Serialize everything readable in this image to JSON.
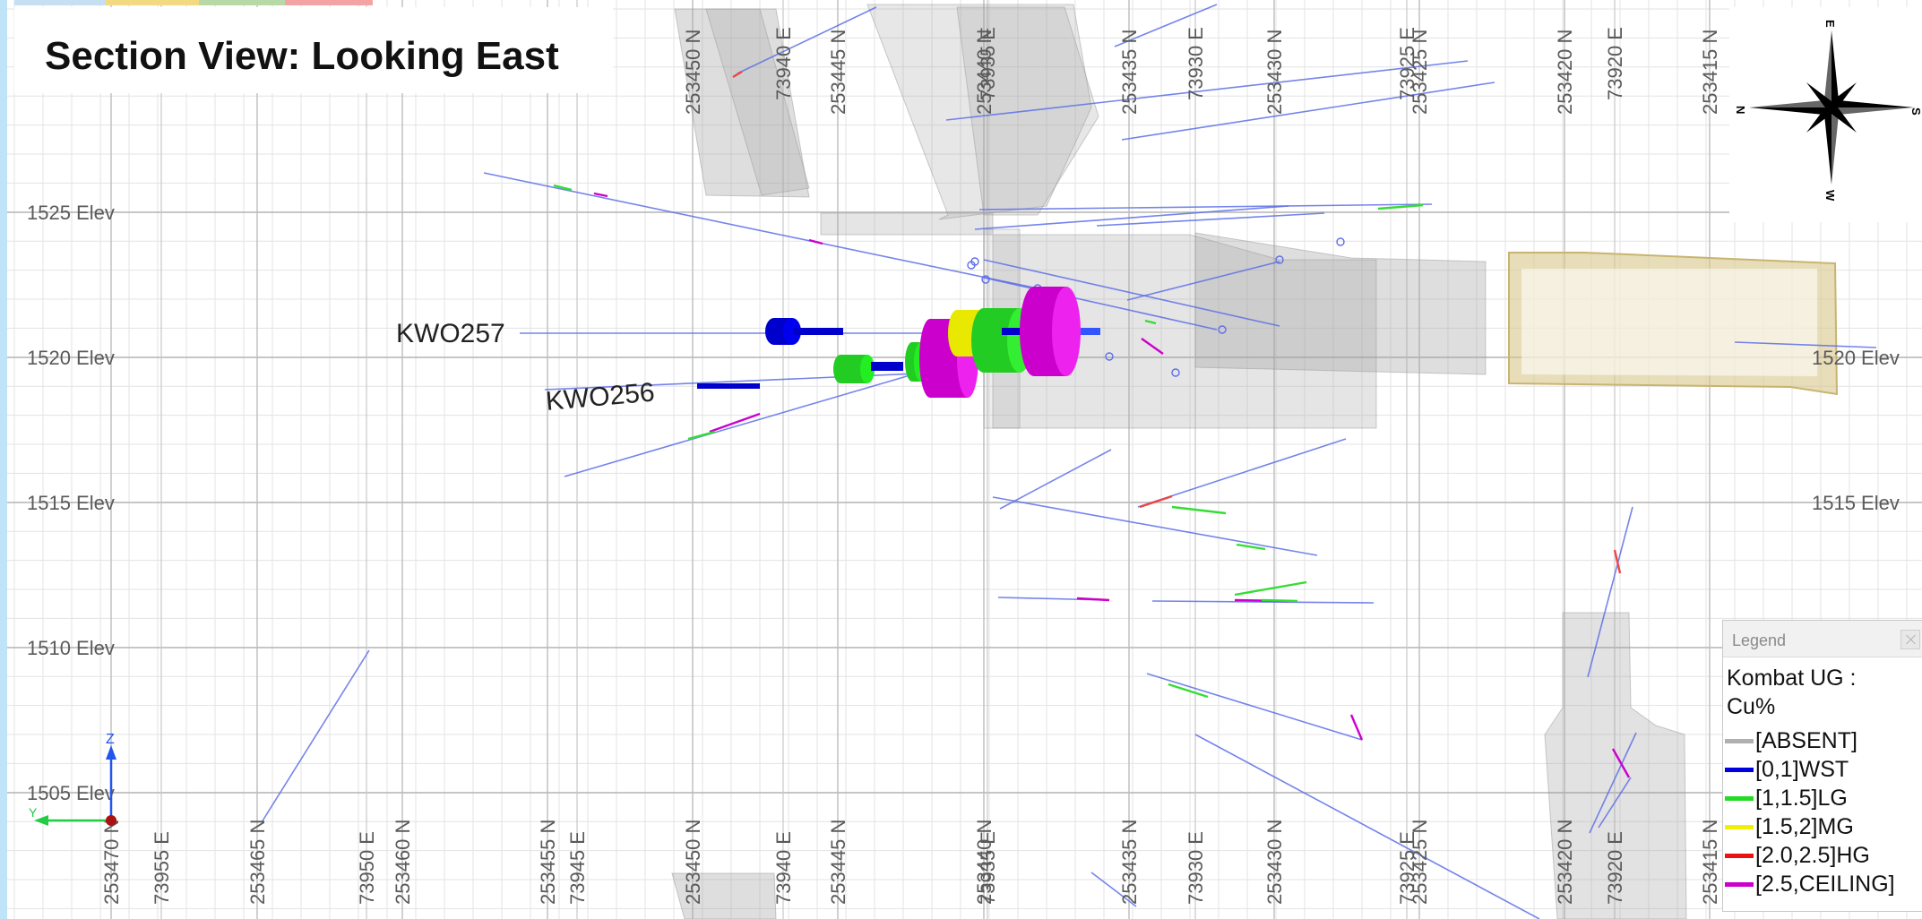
{
  "title": "Section View: Looking East",
  "elevation_labels_left": [
    "1525 Elev",
    "1520 Elev",
    "1515 Elev",
    "1510 Elev",
    "1505 Elev"
  ],
  "elevation_labels_right": [
    "1520 Elev",
    "1515 Elev"
  ],
  "north_labels": [
    "253470 N",
    "253465 N",
    "253460 N",
    "253455 N",
    "253450 N",
    "253445 N",
    "253440 N",
    "253435 N",
    "253430 N",
    "253425 N",
    "253420 N",
    "253415 N"
  ],
  "east_labels": [
    "73955 E",
    "73950 E",
    "73945 E",
    "73940 E",
    "73935 E",
    "73930 E",
    "73925 E",
    "73920 E"
  ],
  "top_north_labels": [
    "253450 N",
    "253445 N",
    "253440 N",
    "253435 N",
    "253430 N",
    "253425 N",
    "253420 N",
    "253415 N"
  ],
  "top_east_labels": [
    "73940 E",
    "73935 E",
    "73930 E",
    "73925 E",
    "73920 E"
  ],
  "holes": [
    {
      "id": "KWO257"
    },
    {
      "id": "KWO256"
    }
  ],
  "compass": {
    "north": "N",
    "south": "S",
    "east": "E",
    "west": "W"
  },
  "axis_triad": {
    "z": "Z",
    "y": "Y"
  },
  "legend": {
    "header": "Legend",
    "heading": "Kombat UG : Cu%",
    "items": [
      {
        "label": "[ABSENT]",
        "color": "#b0b0b0"
      },
      {
        "label": "[0,1]WST",
        "color": "#0000e0"
      },
      {
        "label": "[1,1.5]LG",
        "color": "#22dd22"
      },
      {
        "label": "[1.5,2]MG",
        "color": "#f0f000"
      },
      {
        "label": "[2.0,2.5]HG",
        "color": "#ee1111"
      },
      {
        "label": "[2.5,CEILING]",
        "color": "#cc00cc"
      }
    ]
  }
}
